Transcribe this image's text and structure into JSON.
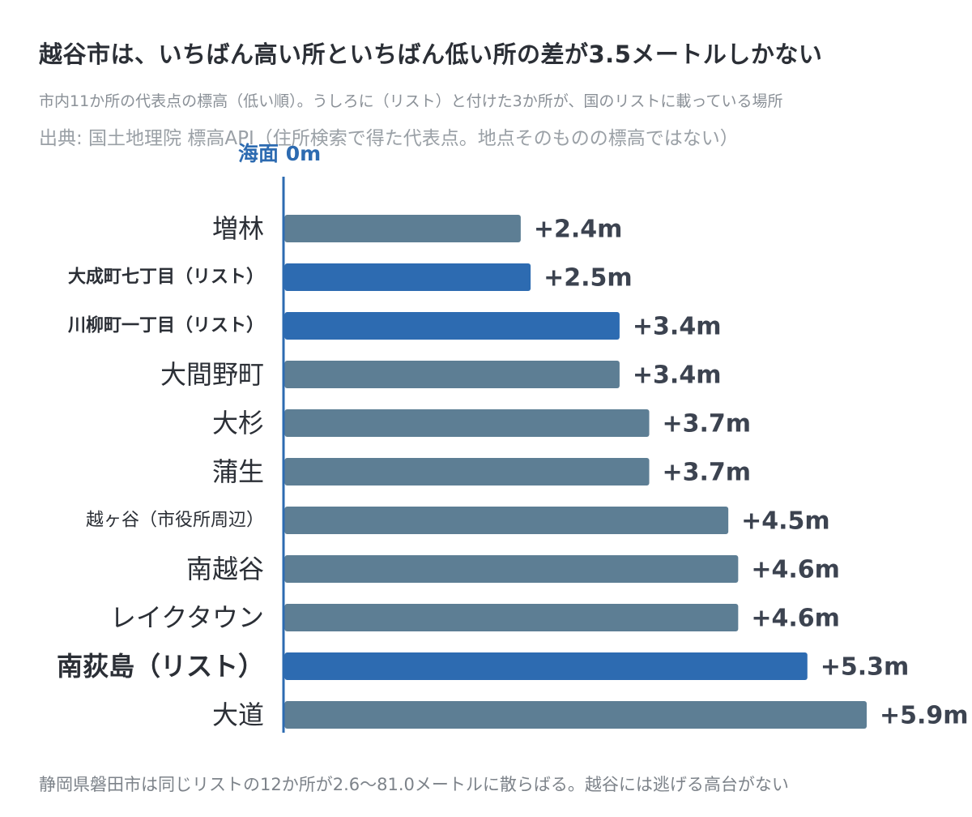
{
  "title": "越谷市は、いちばん高い所といちばん低い所の差が3.5メートルしかない",
  "subtitle": "市内11か所の代表点の標高（低い順）。うしろに（リスト）と付けた3か所が、国のリストに載っている場所",
  "source": "出典: 国土地理院 標高API（住所検索で得た代表点。地点そのものの標高ではない）",
  "footer": "静岡県磐田市は同じリストの12か所が2.6〜81.0メートルに散らばる。越谷には逃げる高台がない",
  "colors": {
    "base": "#5d7e94",
    "highlight": "#2d6bb1",
    "axis": "#2d6bb1",
    "label": "#2b2f36",
    "value": "#3c4350"
  },
  "chart_data": {
    "type": "bar",
    "orientation": "horizontal",
    "baseline_label": "海面 0m",
    "unit": "m",
    "xlim": [
      0,
      5.9
    ],
    "categories": [
      "増林",
      "大成町七丁目（リスト）",
      "川柳町一丁目（リスト）",
      "大間野町",
      "大杉",
      "蒲生",
      "越ヶ谷（市役所周辺）",
      "南越谷",
      "レイクタウン",
      "南荻島（リスト）",
      "大道"
    ],
    "values": [
      2.4,
      2.5,
      3.4,
      3.4,
      3.7,
      3.7,
      4.5,
      4.6,
      4.6,
      5.3,
      5.9
    ],
    "value_labels": [
      "+2.4m",
      "+2.5m",
      "+3.4m",
      "+3.4m",
      "+3.7m",
      "+3.7m",
      "+4.5m",
      "+4.6m",
      "+4.6m",
      "+5.3m",
      "+5.9m"
    ],
    "highlighted": [
      false,
      true,
      true,
      false,
      false,
      false,
      false,
      false,
      false,
      true,
      false
    ]
  }
}
